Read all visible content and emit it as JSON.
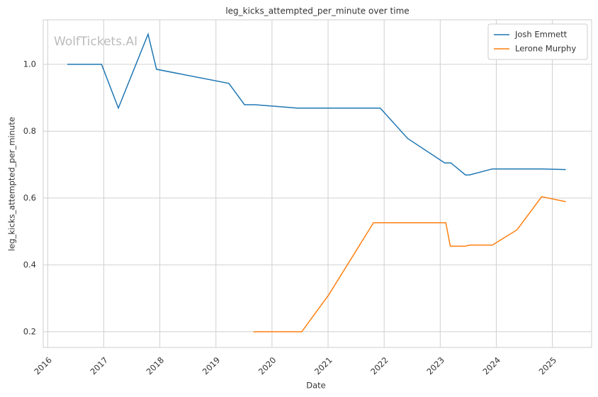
{
  "chart_data": {
    "type": "line",
    "title": "leg_kicks_attempted_per_minute over time",
    "xlabel": "Date",
    "ylabel": "leg_kicks_attempted_per_minute",
    "watermark": "WolfTickets.AI",
    "legend": "upper right",
    "grid": true,
    "xlim": [
      2015.92,
      2025.7
    ],
    "xticks": [
      2016,
      2017,
      2018,
      2019,
      2020,
      2021,
      2022,
      2023,
      2024,
      2025
    ],
    "ylim": [
      0.153,
      1.133
    ],
    "yticks": [
      {
        "value": 0.2,
        "label": "0.2"
      },
      {
        "value": 0.4,
        "label": "0.4"
      },
      {
        "value": 0.6,
        "label": "0.6"
      },
      {
        "value": 0.8,
        "label": "0.8"
      },
      {
        "value": 1.0,
        "label": "1.0"
      }
    ],
    "series": [
      {
        "name": "Josh Emmett",
        "color": "#1f77b4",
        "x": [
          2016.35,
          2016.96,
          2017.26,
          2017.79,
          2017.94,
          2019.23,
          2019.51,
          2019.7,
          2020.45,
          2021.93,
          2022.42,
          2023.08,
          2023.19,
          2023.45,
          2023.52,
          2023.93,
          2024.81,
          2025.24
        ],
        "values": [
          1.0,
          1.0,
          0.869,
          1.09,
          0.985,
          0.943,
          0.879,
          0.879,
          0.869,
          0.869,
          0.778,
          0.705,
          0.705,
          0.669,
          0.669,
          0.687,
          0.687,
          0.685
        ]
      },
      {
        "name": "Lerone Murphy",
        "color": "#ff7f0e",
        "x": [
          2019.67,
          2020.53,
          2021.01,
          2021.81,
          2023.1,
          2023.18,
          2023.45,
          2023.52,
          2023.93,
          2024.37,
          2024.81,
          2025.24
        ],
        "values": [
          0.2,
          0.2,
          0.31,
          0.526,
          0.526,
          0.456,
          0.456,
          0.459,
          0.459,
          0.505,
          0.604,
          0.589
        ]
      }
    ]
  }
}
